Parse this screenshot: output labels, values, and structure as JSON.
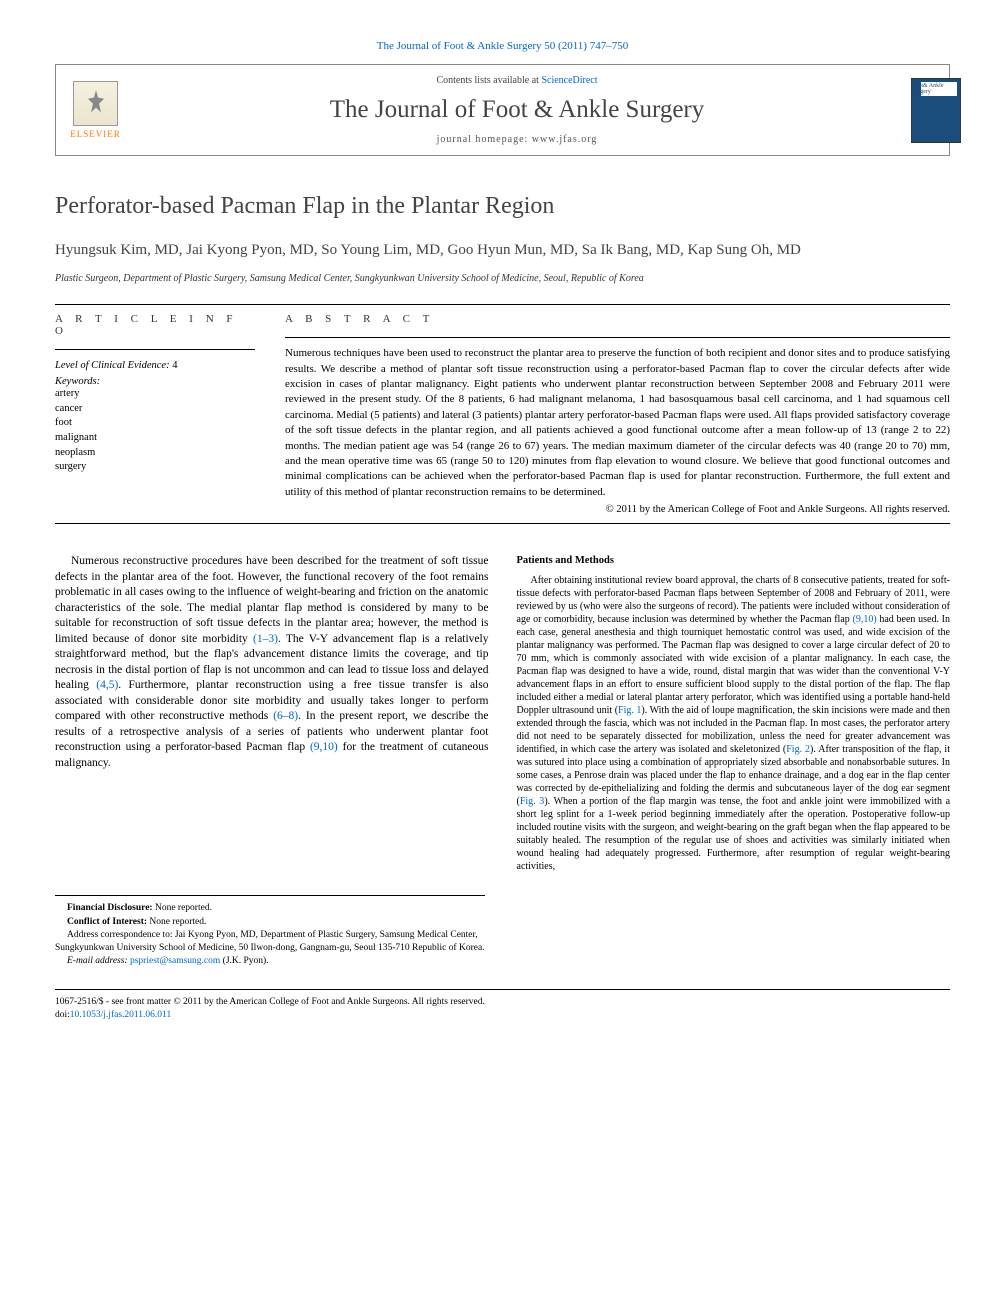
{
  "header": {
    "citation": "The Journal of Foot & Ankle Surgery 50 (2011) 747–750",
    "contents_prefix": "Contents lists available at ",
    "contents_link": "ScienceDirect",
    "journal_name": "The Journal of Foot & Ankle Surgery",
    "homepage_prefix": "journal homepage: ",
    "homepage_url": "www.jfas.org",
    "elsevier_label": "ELSEVIER",
    "cover_label": "Foot& Ankle Surgery"
  },
  "article": {
    "title": "Perforator-based Pacman Flap in the Plantar Region",
    "authors": "Hyungsuk Kim, MD, Jai Kyong Pyon, MD, So Young Lim, MD, Goo Hyun Mun, MD, Sa Ik Bang, MD, Kap Sung Oh, MD",
    "affiliation": "Plastic Surgeon, Department of Plastic Surgery, Samsung Medical Center, Sungkyunkwan University School of Medicine, Seoul, Republic of Korea"
  },
  "info": {
    "heading": "A R T I C L E   I N F O",
    "evidence_label": "Level of Clinical Evidence:",
    "evidence_value": " 4",
    "keywords_label": "Keywords:",
    "keywords": [
      "artery",
      "cancer",
      "foot",
      "malignant",
      "neoplasm",
      "surgery"
    ]
  },
  "abstract": {
    "heading": "A B S T R A C T",
    "text": "Numerous techniques have been used to reconstruct the plantar area to preserve the function of both recipient and donor sites and to produce satisfying results. We describe a method of plantar soft tissue reconstruction using a perforator-based Pacman flap to cover the circular defects after wide excision in cases of plantar malignancy. Eight patients who underwent plantar reconstruction between September 2008 and February 2011 were reviewed in the present study. Of the 8 patients, 6 had malignant melanoma, 1 had basosquamous basal cell carcinoma, and 1 had squamous cell carcinoma. Medial (5 patients) and lateral (3 patients) plantar artery perforator-based Pacman flaps were used. All flaps provided satisfactory coverage of the soft tissue defects in the plantar region, and all patients achieved a good functional outcome after a mean follow-up of 13 (range 2 to 22) months. The median patient age was 54 (range 26 to 67) years. The median maximum diameter of the circular defects was 40 (range 20 to 70) mm, and the mean operative time was 65 (range 50 to 120) minutes from flap elevation to wound closure. We believe that good functional outcomes and minimal complications can be achieved when the perforator-based Pacman flap is used for plantar reconstruction. Furthermore, the full extent and utility of this method of plantar reconstruction remains to be determined.",
    "copyright": "© 2011 by the American College of Foot and Ankle Surgeons. All rights reserved."
  },
  "body": {
    "intro": "Numerous reconstructive procedures have been described for the treatment of soft tissue defects in the plantar area of the foot. However, the functional recovery of the foot remains problematic in all cases owing to the influence of weight-bearing and friction on the anatomic characteristics of the sole. The medial plantar flap method is considered by many to be suitable for reconstruction of soft tissue defects in the plantar area; however, the method is limited because of donor site morbidity ",
    "ref1": "(1–3)",
    "intro2": ". The V-Y advancement flap is a relatively straightforward method, but the flap's advancement distance limits the coverage, and tip necrosis in the distal portion of flap is not uncommon and can lead to tissue loss and delayed healing ",
    "ref2": "(4,5)",
    "intro3": ". Furthermore, plantar reconstruction using a free tissue transfer is also associated with considerable donor site morbidity and usually takes longer to perform compared with other reconstructive methods ",
    "ref3": "(6–8)",
    "intro4": ". In the present report, we describe the results of a retrospective analysis of a series of patients who underwent plantar foot reconstruction using a perforator-based Pacman flap ",
    "ref4": "(9,10)",
    "intro5": " for the treatment of cutaneous malignancy.",
    "methods_heading": "Patients and Methods",
    "methods": "After obtaining institutional review board approval, the charts of 8 consecutive patients, treated for soft-tissue defects with perforator-based Pacman flaps between September of 2008 and February of 2011, were reviewed by us (who were also the surgeons of record). The patients were included without consideration of age or comorbidity, because inclusion was determined by whether the Pacman flap ",
    "mref1": "(9,10)",
    "methods2": " had been used. In each case, general anesthesia and thigh tourniquet hemostatic control was used, and wide excision of the plantar malignancy was performed. The Pacman flap was designed to cover a large circular defect of 20 to 70 mm, which is commonly associated with wide excision of a plantar malignancy. In each case, the Pacman flap was designed to have a wide, round, distal margin that was wider than the conventional V-Y advancement flaps in an effort to ensure sufficient blood supply to the distal portion of the flap. The flap included either a medial or lateral plantar artery perforator, which was identified using a portable hand-held Doppler ultrasound unit (",
    "mfig1": "Fig. 1",
    "methods3": "). With the aid of loupe magnification, the skin incisions were made and then extended through the fascia, which was not included in the Pacman flap. In most cases, the perforator artery did not need to be separately dissected for mobilization, unless the need for greater advancement was identified, in which case the artery was isolated and skeletonized (",
    "mfig2": "Fig. 2",
    "methods4": "). After transposition of the flap, it was sutured into place using a combination of appropriately sized absorbable and nonabsorbable sutures. In some cases, a Penrose drain was placed under the flap to enhance drainage, and a dog ear in the flap center was corrected by de-epithelializing and folding the dermis and subcutaneous layer of the dog ear segment (",
    "mfig3": "Fig. 3",
    "methods5": "). When a portion of the flap margin was tense, the foot and ankle joint were immobilized with a short leg splint for a 1-week period beginning immediately after the operation. Postoperative follow-up included routine visits with the surgeon, and weight-bearing on the graft began when the flap appeared to be suitably healed. The resumption of the regular use of shoes and activities was similarly initiated when wound healing had adequately progressed. Furthermore, after resumption of regular weight-bearing activities,"
  },
  "footnotes": {
    "fd_label": "Financial Disclosure:",
    "fd_value": " None reported.",
    "ci_label": "Conflict of Interest:",
    "ci_value": " None reported.",
    "address": "Address correspondence to: Jai Kyong Pyon, MD, Department of Plastic Surgery, Samsung Medical Center, Sungkyunkwan University School of Medicine, 50 Ilwon-dong, Gangnam-gu, Seoul 135-710 Republic of Korea.",
    "email_label": "E-mail address: ",
    "email": "pspriest@samsung.com",
    "email_suffix": " (J.K. Pyon)."
  },
  "footer": {
    "line1": "1067-2516/$ - see front matter © 2011 by the American College of Foot and Ankle Surgeons. All rights reserved.",
    "doi_prefix": "doi:",
    "doi": "10.1053/j.jfas.2011.06.011"
  },
  "colors": {
    "link": "#0066cc",
    "text": "#000000",
    "heading": "#444444",
    "elsevier": "#ff7700",
    "cover_bg": "#1a4d7a"
  }
}
